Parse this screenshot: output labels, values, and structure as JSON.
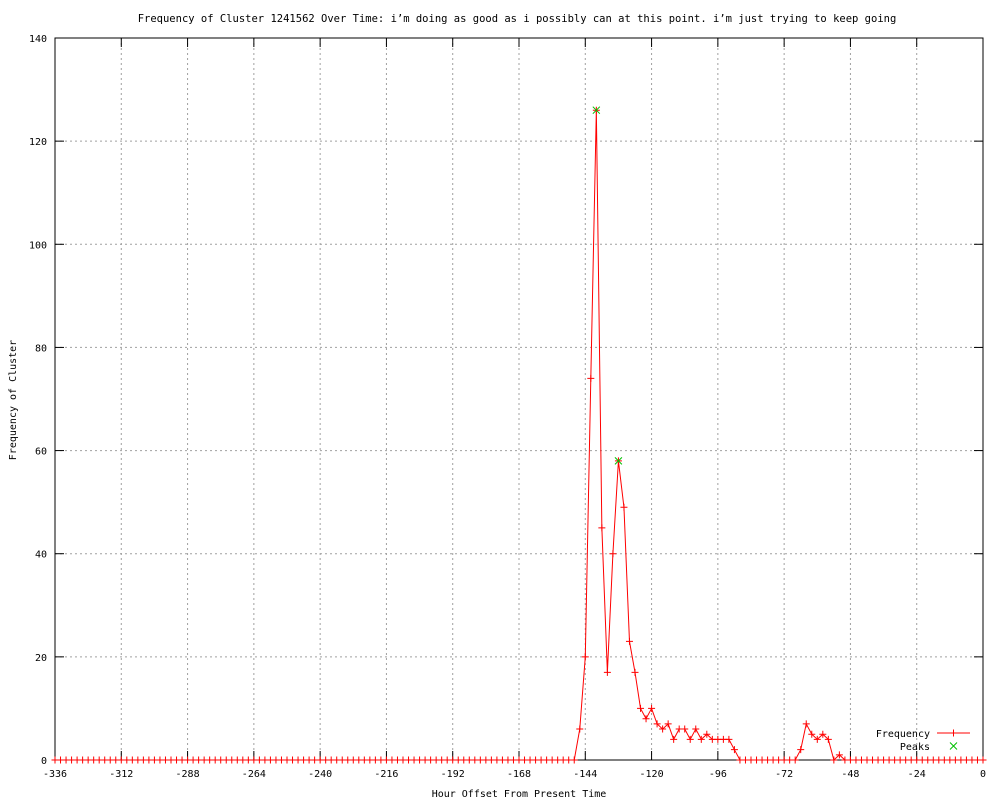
{
  "chart_data": {
    "type": "line",
    "title": "Frequency of Cluster 1241562 Over Time: i’m doing as good as i possibly can at this point. i’m just trying to keep going",
    "xlabel": "Hour Offset From Present Time",
    "ylabel": "Frequency of Cluster",
    "xlim": [
      -336,
      0
    ],
    "ylim": [
      0,
      140
    ],
    "xticks": [
      -336,
      -312,
      -288,
      -264,
      -240,
      -216,
      -192,
      -168,
      -144,
      -120,
      -96,
      -72,
      -48,
      -24,
      0
    ],
    "yticks": [
      0,
      20,
      40,
      60,
      80,
      100,
      120,
      140
    ],
    "grid": true,
    "legend_position": "bottom-right",
    "x": [
      -336,
      -334,
      -332,
      -330,
      -328,
      -326,
      -324,
      -322,
      -320,
      -318,
      -316,
      -314,
      -312,
      -310,
      -308,
      -306,
      -304,
      -302,
      -300,
      -298,
      -296,
      -294,
      -292,
      -290,
      -288,
      -286,
      -284,
      -282,
      -280,
      -278,
      -276,
      -274,
      -272,
      -270,
      -268,
      -266,
      -264,
      -262,
      -260,
      -258,
      -256,
      -254,
      -252,
      -250,
      -248,
      -246,
      -244,
      -242,
      -240,
      -238,
      -236,
      -234,
      -232,
      -230,
      -228,
      -226,
      -224,
      -222,
      -220,
      -218,
      -216,
      -214,
      -212,
      -210,
      -208,
      -206,
      -204,
      -202,
      -200,
      -198,
      -196,
      -194,
      -192,
      -190,
      -188,
      -186,
      -184,
      -182,
      -180,
      -178,
      -176,
      -174,
      -172,
      -170,
      -168,
      -166,
      -164,
      -162,
      -160,
      -158,
      -156,
      -154,
      -152,
      -150,
      -148,
      -146,
      -144,
      -142,
      -140,
      -138,
      -136,
      -134,
      -132,
      -130,
      -128,
      -126,
      -124,
      -122,
      -120,
      -118,
      -116,
      -114,
      -112,
      -110,
      -108,
      -106,
      -104,
      -102,
      -100,
      -98,
      -96,
      -94,
      -92,
      -90,
      -88,
      -86,
      -84,
      -82,
      -80,
      -78,
      -76,
      -74,
      -72,
      -70,
      -68,
      -66,
      -64,
      -62,
      -60,
      -58,
      -56,
      -54,
      -52,
      -50,
      -48,
      -46,
      -44,
      -42,
      -40,
      -38,
      -36,
      -34,
      -32,
      -30,
      -28,
      -26,
      -24,
      -22,
      -20,
      -18,
      -16,
      -14,
      -12,
      -10,
      -8,
      -6,
      -4,
      -2,
      0
    ],
    "series": [
      {
        "name": "Frequency",
        "color": "#ff0000",
        "marker": "plus",
        "values": [
          0,
          0,
          0,
          0,
          0,
          0,
          0,
          0,
          0,
          0,
          0,
          0,
          0,
          0,
          0,
          0,
          0,
          0,
          0,
          0,
          0,
          0,
          0,
          0,
          0,
          0,
          0,
          0,
          0,
          0,
          0,
          0,
          0,
          0,
          0,
          0,
          0,
          0,
          0,
          0,
          0,
          0,
          0,
          0,
          0,
          0,
          0,
          0,
          0,
          0,
          0,
          0,
          0,
          0,
          0,
          0,
          0,
          0,
          0,
          0,
          0,
          0,
          0,
          0,
          0,
          0,
          0,
          0,
          0,
          0,
          0,
          0,
          0,
          0,
          0,
          0,
          0,
          0,
          0,
          0,
          0,
          0,
          0,
          0,
          0,
          0,
          0,
          0,
          0,
          0,
          0,
          0,
          0,
          0,
          0,
          6,
          20,
          74,
          126,
          45,
          17,
          40,
          58,
          49,
          23,
          17,
          10,
          8,
          10,
          7,
          6,
          7,
          4,
          6,
          6,
          4,
          6,
          4,
          5,
          4,
          4,
          4,
          4,
          2,
          0,
          0,
          0,
          0,
          0,
          0,
          0,
          0,
          0,
          0,
          0,
          2,
          7,
          5,
          4,
          5,
          4,
          0,
          1,
          0,
          0,
          0,
          0,
          0,
          0,
          0,
          0,
          0,
          0,
          0,
          0,
          0,
          0,
          0,
          0,
          0,
          0,
          0,
          0,
          0,
          0,
          0,
          0,
          0,
          0
        ]
      },
      {
        "name": "Peaks",
        "color": "#00c000",
        "marker": "x",
        "points": [
          [
            -140,
            126
          ],
          [
            -132,
            58
          ]
        ]
      }
    ]
  }
}
